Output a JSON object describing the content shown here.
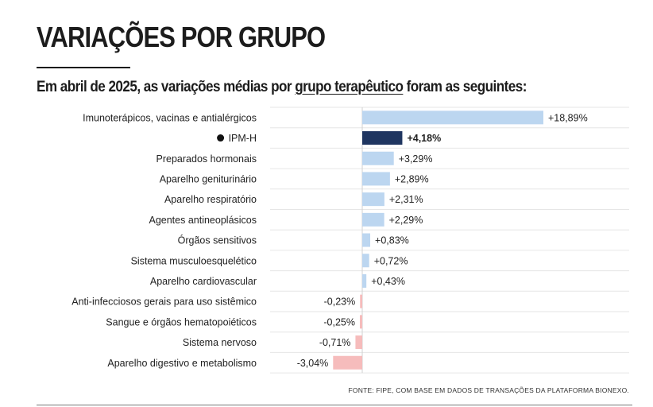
{
  "header": {
    "title": "VARIAÇÕES POR GRUPO",
    "subtitle_pre": "Em abril de 2025, as variações médias por ",
    "subtitle_link": "grupo terapêutico",
    "subtitle_post": " foram as seguintes:"
  },
  "footer": {
    "source": "FONTE: FIPE, COM BASE EM DADOS DE TRANSAÇÕES DA PLATAFORMA BIONEXO."
  },
  "colors": {
    "positive": "#bcd6f0",
    "highlight": "#1f3560",
    "negative": "#f6bcbc",
    "grid": "#e6e6e6"
  },
  "chart_data": {
    "type": "bar",
    "orientation": "horizontal",
    "categories": [
      "Imunoterápicos, vacinas e antialérgicos",
      "IPM-H",
      "Preparados hormonais",
      "Aparelho geniturinário",
      "Aparelho respiratório",
      "Agentes antineoplásicos",
      "Órgãos sensitivos",
      "Sistema musculoesquelético",
      "Aparelho cardiovascular",
      "Anti-infecciosos gerais para uso sistêmico",
      "Sangue e órgãos hematopoiéticos",
      "Sistema nervoso",
      "Aparelho digestivo e metabolismo"
    ],
    "values": [
      18.89,
      4.18,
      3.29,
      2.89,
      2.31,
      2.29,
      0.83,
      0.72,
      0.43,
      -0.23,
      -0.25,
      -0.71,
      -3.04
    ],
    "value_labels": [
      "+18,89%",
      "+4,18%",
      "+3,29%",
      "+2,89%",
      "+2,31%",
      "+2,29%",
      "+0,83%",
      "+0,72%",
      "+0,43%",
      "-0,23%",
      "-0,25%",
      "-0,71%",
      "-3,04%"
    ],
    "highlight_category": "IPM-H",
    "xlim": [
      -3.04,
      18.89
    ],
    "grid": true
  }
}
